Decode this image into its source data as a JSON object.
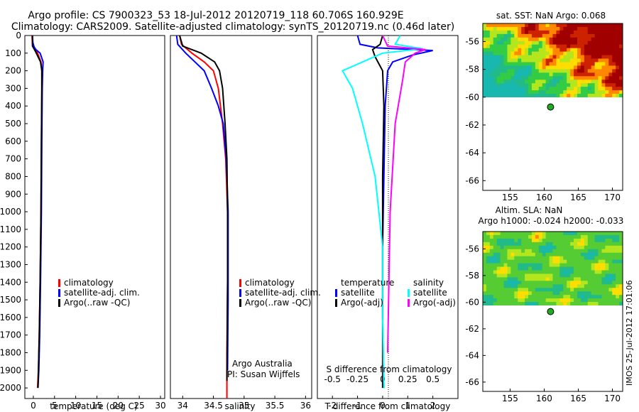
{
  "header": {
    "line1": "Argo profile: CS 7900323_53 18-Jul-2012 20120719_118 60.706S 160.929E",
    "line2": "Climatology: CARS2009. Satellite-adjusted climatology: synTS_20120719.nc (0.46d later)"
  },
  "stamp": "IMOS 25-Jul-2012 17:01:06",
  "colors": {
    "climatology": "#ff0000",
    "satellite": "#0000ff",
    "argo": "#000000",
    "sat_s": "#00ffff",
    "argo_s": "#ff00ff"
  },
  "chart_data": [
    {
      "type": "line",
      "id": "temperature",
      "xlabel": "temperature (deg C)",
      "ylabel": "",
      "xlim": [
        -2,
        31
      ],
      "ylim": [
        2060,
        0
      ],
      "y_inverted": true,
      "xticks": [
        0,
        5,
        10,
        15,
        20,
        25,
        30
      ],
      "yticks": [
        0,
        100,
        200,
        300,
        400,
        500,
        600,
        700,
        800,
        900,
        1000,
        1100,
        1200,
        1300,
        1400,
        1500,
        1600,
        1700,
        1800,
        1900,
        2000
      ],
      "legend": [
        "climatology",
        "satellite-adj. clim.",
        "Argo(..raw -QC)"
      ],
      "legend_placement": "lower-right",
      "series": [
        {
          "name": "climatology",
          "color": "#ff0000",
          "x": [
            -0.3,
            -0.2,
            1.0,
            1.8,
            2.0,
            2.0,
            1.9,
            1.8,
            1.6,
            1.4,
            1.2,
            1.0
          ],
          "y": [
            0,
            50,
            100,
            150,
            200,
            300,
            600,
            1000,
            1400,
            1700,
            1900,
            2000
          ]
        },
        {
          "name": "satellite-adj. clim.",
          "color": "#0000ff",
          "x": [
            -0.2,
            -0.1,
            0.2,
            0.6,
            1.6,
            2.3,
            2.2,
            2.1,
            2.0,
            1.9,
            1.7,
            1.5,
            1.3,
            1.1
          ],
          "y": [
            0,
            40,
            65,
            80,
            100,
            150,
            200,
            300,
            600,
            1000,
            1400,
            1700,
            1900,
            2000
          ]
        },
        {
          "name": "Argo(..raw -QC)",
          "color": "#000000",
          "x": [
            -0.2,
            -0.2,
            0.5,
            1.7,
            2.0,
            2.0,
            1.9,
            1.8,
            1.6,
            1.4,
            1.2,
            1.1
          ],
          "y": [
            0,
            60,
            90,
            150,
            200,
            300,
            600,
            1000,
            1400,
            1700,
            1900,
            2000
          ]
        }
      ]
    },
    {
      "type": "line",
      "id": "salinity",
      "xlabel": "salinity",
      "xlim": [
        33.8,
        36.1
      ],
      "ylim": [
        2060,
        0
      ],
      "y_inverted": true,
      "xticks": [
        34,
        34.5,
        35,
        35.5,
        36
      ],
      "xticklabels": [
        "34",
        "34.5",
        "35",
        "35.5",
        "36"
      ],
      "legend": [
        "climatology",
        "satellite-adj. clim.",
        "Argo(..raw -QC)"
      ],
      "legend_placement": "lower-right",
      "annotations": [
        "Argo Australia",
        "PI: Susan Wijffels"
      ],
      "series": [
        {
          "name": "climatology",
          "color": "#ff0000",
          "x": [
            33.95,
            33.98,
            34.15,
            34.35,
            34.5,
            34.58,
            34.65,
            34.7,
            34.73,
            34.73,
            34.72,
            34.72
          ],
          "y": [
            0,
            50,
            100,
            150,
            200,
            300,
            500,
            700,
            1000,
            1400,
            1800,
            2060
          ]
        },
        {
          "name": "satellite-adj. clim.",
          "color": "#0000ff",
          "x": [
            33.9,
            33.92,
            34.05,
            34.2,
            34.35,
            34.47,
            34.58,
            34.66,
            34.71,
            34.74,
            34.74,
            34.73
          ],
          "y": [
            0,
            50,
            100,
            150,
            200,
            300,
            400,
            500,
            700,
            1000,
            1500,
            1900
          ]
        },
        {
          "name": "Argo(..raw -QC)",
          "color": "#000000",
          "x": [
            33.95,
            34.0,
            34.3,
            34.52,
            34.6,
            34.65,
            34.69,
            34.72,
            34.73,
            34.73,
            34.72
          ],
          "y": [
            0,
            60,
            100,
            150,
            200,
            300,
            500,
            700,
            1000,
            1400,
            1960
          ]
        }
      ]
    },
    {
      "type": "line",
      "id": "difference",
      "xlabel": "T difference from climatology",
      "x2label": "S difference from climatology",
      "xlim": [
        -2.6,
        3.0
      ],
      "ylim": [
        2060,
        0
      ],
      "y_inverted": true,
      "xticks": [
        -2,
        -1,
        0,
        1,
        2
      ],
      "x2ticks": [
        -0.5,
        -0.25,
        0,
        0.25,
        0.5
      ],
      "x2ticklabels": [
        "-0.5",
        "-0.25",
        "0",
        "0.25",
        "0.5"
      ],
      "legend_temperature_title": "temperature",
      "legend_salinity_title": "salinity",
      "legend_temperature": [
        "satellite",
        "Argo(-adj)"
      ],
      "legend_salinity": [
        "satellite",
        "Argo(-adj)"
      ],
      "series": [
        {
          "name": "satellite",
          "group": "temperature",
          "color": "#0000ff",
          "x": [
            -1.0,
            -0.9,
            -0.2,
            2.0,
            1.2,
            0.4,
            0.2,
            0.1,
            0.05,
            0.0,
            0.0,
            0.05
          ],
          "y": [
            0,
            50,
            70,
            85,
            110,
            150,
            200,
            400,
            800,
            1200,
            1600,
            2000
          ]
        },
        {
          "name": "Argo(-adj)",
          "group": "temperature",
          "color": "#000000",
          "x": [
            0.0,
            -0.1,
            -0.4,
            -0.3,
            0.0,
            0.05,
            0.0,
            0.0,
            0.0
          ],
          "y": [
            0,
            50,
            80,
            120,
            200,
            400,
            800,
            1400,
            2000
          ]
        },
        {
          "name": "satellite",
          "group": "salinity",
          "color": "#00ffff",
          "x": [
            0.7,
            0.5,
            1.6,
            0.0,
            -1.6,
            -1.2,
            -0.8,
            -0.3,
            0.0,
            0.0,
            0.05
          ],
          "y": [
            0,
            50,
            75,
            100,
            200,
            300,
            500,
            800,
            1200,
            1600,
            2000
          ]
        },
        {
          "name": "Argo(-adj)",
          "group": "salinity",
          "color": "#ff00ff",
          "x": [
            0.0,
            0.2,
            1.7,
            1.3,
            0.9,
            0.8,
            0.5,
            0.3,
            0.2
          ],
          "y": [
            0,
            60,
            80,
            100,
            150,
            250,
            500,
            1000,
            1800
          ]
        }
      ]
    },
    {
      "type": "heatmap",
      "id": "sst_map",
      "title": "sat. SST: NaN  Argo: 0.068",
      "xlim": [
        151,
        171.5
      ],
      "ylim": [
        -66.7,
        -54.7
      ],
      "xticks": [
        155,
        160,
        165,
        170
      ],
      "yticks": [
        -56,
        -58,
        -60,
        -62,
        -64,
        -66
      ],
      "xticklabels": [
        "155",
        "160",
        "165",
        "170"
      ],
      "yticklabels": [
        "-56",
        "-58",
        "-60",
        "-62",
        "-64",
        "-66"
      ],
      "data_extent_lat": [
        -60,
        -54.7
      ],
      "marker": {
        "lon": 160.929,
        "lat": -60.706,
        "color": "#22aa22"
      }
    },
    {
      "type": "heatmap",
      "id": "sla_map",
      "title": "Altim. SLA: NaN",
      "subtitle": "Argo h1000: -0.024  h2000: -0.033",
      "xlim": [
        151,
        171.5
      ],
      "ylim": [
        -66.7,
        -54.7
      ],
      "xticks": [
        155,
        160,
        165,
        170
      ],
      "yticks": [
        -56,
        -58,
        -60,
        -62,
        -64,
        -66
      ],
      "xticklabels": [
        "155",
        "160",
        "165",
        "170"
      ],
      "yticklabels": [
        "-56",
        "-58",
        "-60",
        "-62",
        "-64",
        "-66"
      ],
      "data_extent_lat": [
        -60,
        -54.7
      ],
      "marker": {
        "lon": 160.929,
        "lat": -60.706,
        "color": "#22aa22"
      }
    }
  ]
}
